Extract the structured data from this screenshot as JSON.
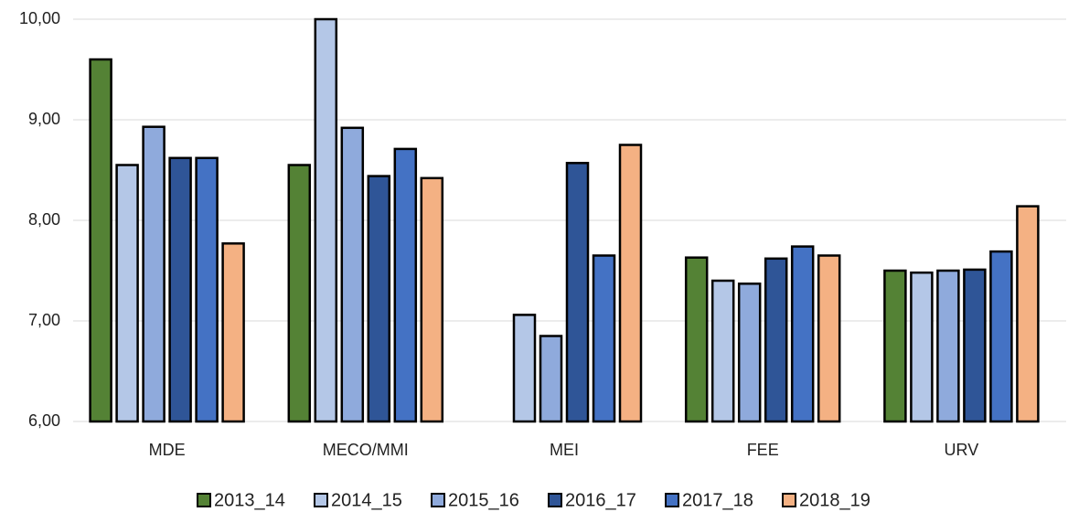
{
  "chart_data": {
    "type": "bar",
    "categories": [
      "MDE",
      "MECO/MMI",
      "MEI",
      "FEE",
      "URV"
    ],
    "series": [
      {
        "name": "2013_14",
        "color": "#548235",
        "values": [
          9.6,
          8.55,
          null,
          7.63,
          7.5
        ]
      },
      {
        "name": "2014_15",
        "color": "#b4c7e7",
        "values": [
          8.55,
          10.0,
          7.06,
          7.4,
          7.48
        ]
      },
      {
        "name": "2015_16",
        "color": "#8faadc",
        "values": [
          8.93,
          8.92,
          6.85,
          7.37,
          7.5
        ]
      },
      {
        "name": "2016_17",
        "color": "#2f5597",
        "values": [
          8.62,
          8.44,
          8.57,
          7.62,
          7.51
        ]
      },
      {
        "name": "2017_18",
        "color": "#4472c4",
        "values": [
          8.62,
          8.71,
          7.65,
          7.74,
          7.69
        ]
      },
      {
        "name": "2018_19",
        "color": "#f4b183",
        "values": [
          7.77,
          8.42,
          8.75,
          7.65,
          8.14
        ]
      }
    ],
    "ylim": [
      6,
      10
    ],
    "yticks": [
      {
        "value": 6,
        "label": "6,00"
      },
      {
        "value": 7,
        "label": "7,00"
      },
      {
        "value": 8,
        "label": "8,00"
      },
      {
        "value": 9,
        "label": "9,00"
      },
      {
        "value": 10,
        "label": "10,00"
      }
    ],
    "grid": true,
    "legend": "bottom"
  }
}
